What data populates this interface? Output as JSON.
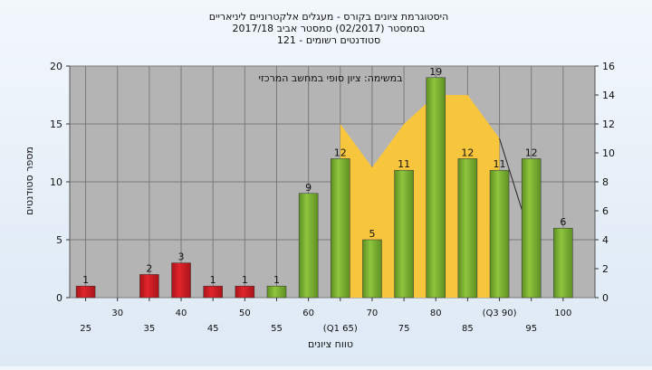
{
  "chart_data": {
    "type": "bar",
    "title_lines": [
      "היסטוגרמת ציונים בקורס - מעגלים אלקטרוניים ליניאריים",
      "בסמסטר   (02/2017)  סמסטר אביב 2017/18",
      "סטודנטים רשומים - 121"
    ],
    "xlabel": "טווח ציונים",
    "ylabel": "מספר סטודנטים",
    "ylim": [
      0,
      20
    ],
    "y_ticks": [
      "0",
      "5",
      "10",
      "15",
      "20"
    ],
    "y2lim": [
      0,
      16
    ],
    "y2_ticks": [
      "0",
      "2",
      "4",
      "6",
      "8",
      "10",
      "12",
      "14",
      "16"
    ],
    "annotation": "במשימה: ציון סופי במחשב המרכזי",
    "categories": [
      25,
      30,
      35,
      40,
      45,
      50,
      55,
      60,
      65,
      70,
      75,
      80,
      85,
      90,
      95,
      100
    ],
    "category_labels_row1": [
      "",
      "30",
      "",
      "40",
      "",
      "50",
      "",
      "60",
      "",
      "70",
      "",
      "80",
      "",
      "(Q3 90)",
      "",
      "100"
    ],
    "category_labels_row2": [
      "25",
      "",
      "35",
      "",
      "45",
      "",
      "55",
      "",
      "(Q1 65)",
      "",
      "75",
      "",
      "85",
      "",
      "95",
      ""
    ],
    "series": [
      {
        "values": [
          1,
          0,
          2,
          3,
          1,
          1,
          1,
          9,
          12,
          5,
          11,
          19,
          12,
          11,
          12,
          6
        ],
        "data_labels": [
          "1",
          "",
          "2",
          "3",
          "1",
          "1",
          "1",
          "9",
          "12",
          "5",
          "11",
          "19",
          "12",
          "11",
          "12",
          "6"
        ],
        "fail_color": "#e0252b",
        "pass_color": "#8dc63f"
      }
    ],
    "area_series": {
      "x": [
        65,
        65,
        70,
        75,
        80,
        85,
        90
      ],
      "y2": [
        0,
        12,
        9,
        12,
        14,
        14,
        11
      ],
      "color": "#f8c63c"
    },
    "ref_line": {
      "x": [
        90,
        95
      ],
      "y2": [
        11,
        4
      ]
    },
    "plot_background": "#b4b4b4",
    "grid": true
  }
}
